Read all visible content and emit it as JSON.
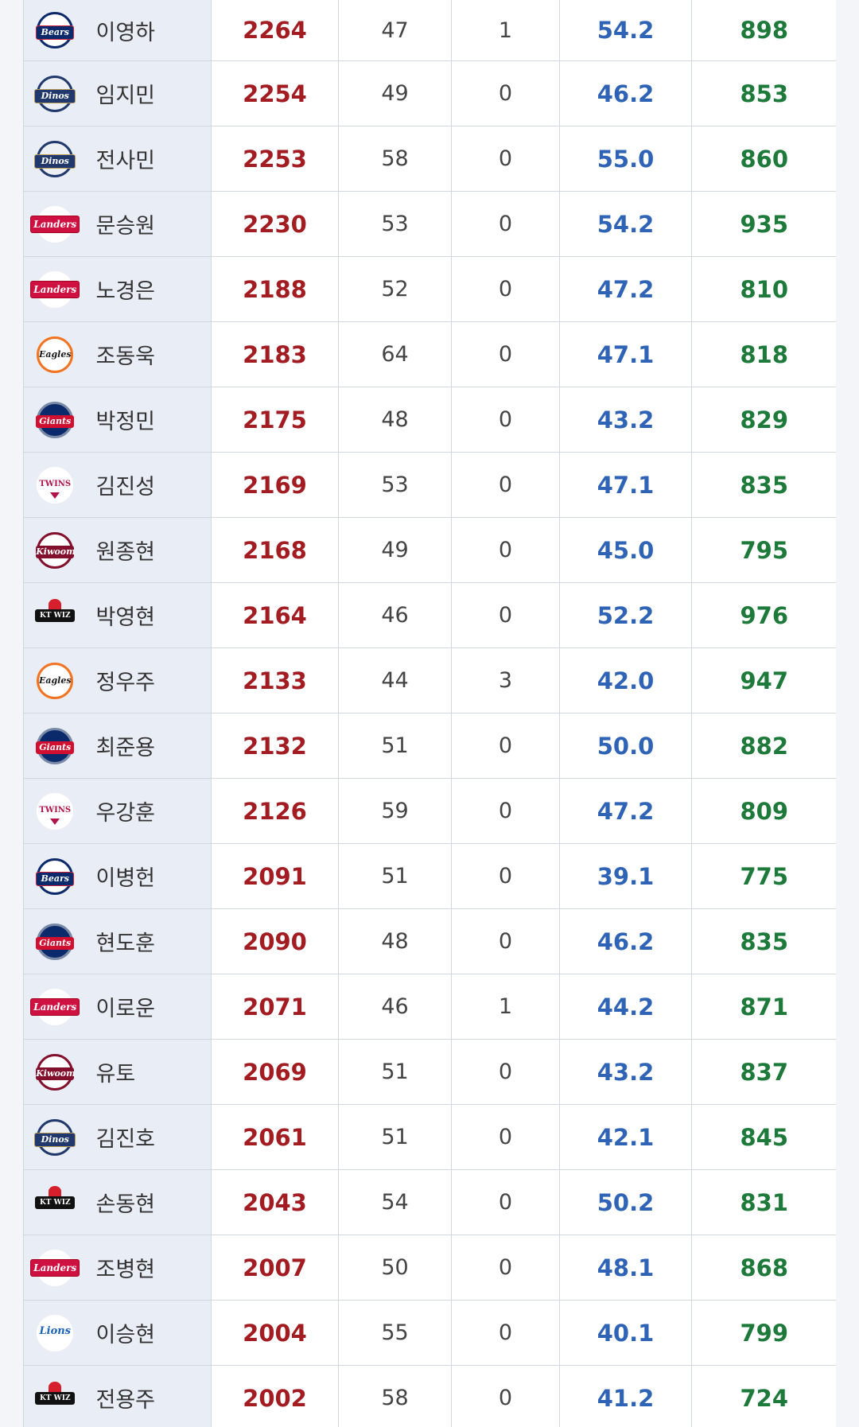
{
  "rows": [
    {
      "team": "Bears",
      "name": "이영하",
      "pts": "2264",
      "a": "47",
      "b": "1",
      "ip": "54.2",
      "k": "898"
    },
    {
      "team": "Dinos",
      "name": "임지민",
      "pts": "2254",
      "a": "49",
      "b": "0",
      "ip": "46.2",
      "k": "853"
    },
    {
      "team": "Dinos",
      "name": "전사민",
      "pts": "2253",
      "a": "58",
      "b": "0",
      "ip": "55.0",
      "k": "860"
    },
    {
      "team": "Landers",
      "name": "문승원",
      "pts": "2230",
      "a": "53",
      "b": "0",
      "ip": "54.2",
      "k": "935"
    },
    {
      "team": "Landers",
      "name": "노경은",
      "pts": "2188",
      "a": "52",
      "b": "0",
      "ip": "47.2",
      "k": "810"
    },
    {
      "team": "Eagles",
      "name": "조동욱",
      "pts": "2183",
      "a": "64",
      "b": "0",
      "ip": "47.1",
      "k": "818"
    },
    {
      "team": "Giants",
      "name": "박정민",
      "pts": "2175",
      "a": "48",
      "b": "0",
      "ip": "43.2",
      "k": "829"
    },
    {
      "team": "TWINS",
      "name": "김진성",
      "pts": "2169",
      "a": "53",
      "b": "0",
      "ip": "47.1",
      "k": "835"
    },
    {
      "team": "Kiwoom",
      "name": "원종현",
      "pts": "2168",
      "a": "49",
      "b": "0",
      "ip": "45.0",
      "k": "795"
    },
    {
      "team": "KT WIZ",
      "name": "박영현",
      "pts": "2164",
      "a": "46",
      "b": "0",
      "ip": "52.2",
      "k": "976"
    },
    {
      "team": "Eagles",
      "name": "정우주",
      "pts": "2133",
      "a": "44",
      "b": "3",
      "ip": "42.0",
      "k": "947"
    },
    {
      "team": "Giants",
      "name": "최준용",
      "pts": "2132",
      "a": "51",
      "b": "0",
      "ip": "50.0",
      "k": "882"
    },
    {
      "team": "TWINS",
      "name": "우강훈",
      "pts": "2126",
      "a": "59",
      "b": "0",
      "ip": "47.2",
      "k": "809"
    },
    {
      "team": "Bears",
      "name": "이병헌",
      "pts": "2091",
      "a": "51",
      "b": "0",
      "ip": "39.1",
      "k": "775"
    },
    {
      "team": "Giants",
      "name": "현도훈",
      "pts": "2090",
      "a": "48",
      "b": "0",
      "ip": "46.2",
      "k": "835"
    },
    {
      "team": "Landers",
      "name": "이로운",
      "pts": "2071",
      "a": "46",
      "b": "1",
      "ip": "44.2",
      "k": "871"
    },
    {
      "team": "Kiwoom",
      "name": "유토",
      "pts": "2069",
      "a": "51",
      "b": "0",
      "ip": "43.2",
      "k": "837"
    },
    {
      "team": "Dinos",
      "name": "김진호",
      "pts": "2061",
      "a": "51",
      "b": "0",
      "ip": "42.1",
      "k": "845"
    },
    {
      "team": "KT WIZ",
      "name": "손동현",
      "pts": "2043",
      "a": "54",
      "b": "0",
      "ip": "50.2",
      "k": "831"
    },
    {
      "team": "Landers",
      "name": "조병현",
      "pts": "2007",
      "a": "50",
      "b": "0",
      "ip": "48.1",
      "k": "868"
    },
    {
      "team": "Lions",
      "name": "이승현",
      "pts": "2004",
      "a": "55",
      "b": "0",
      "ip": "40.1",
      "k": "799"
    },
    {
      "team": "KT WIZ",
      "name": "전용주",
      "pts": "2002",
      "a": "58",
      "b": "0",
      "ip": "41.2",
      "k": "724"
    }
  ],
  "colors": {
    "points": "#a21c22",
    "ip": "#2f63b6",
    "strikeouts": "#1e7a3a",
    "name_bg": "#e9edf5"
  }
}
